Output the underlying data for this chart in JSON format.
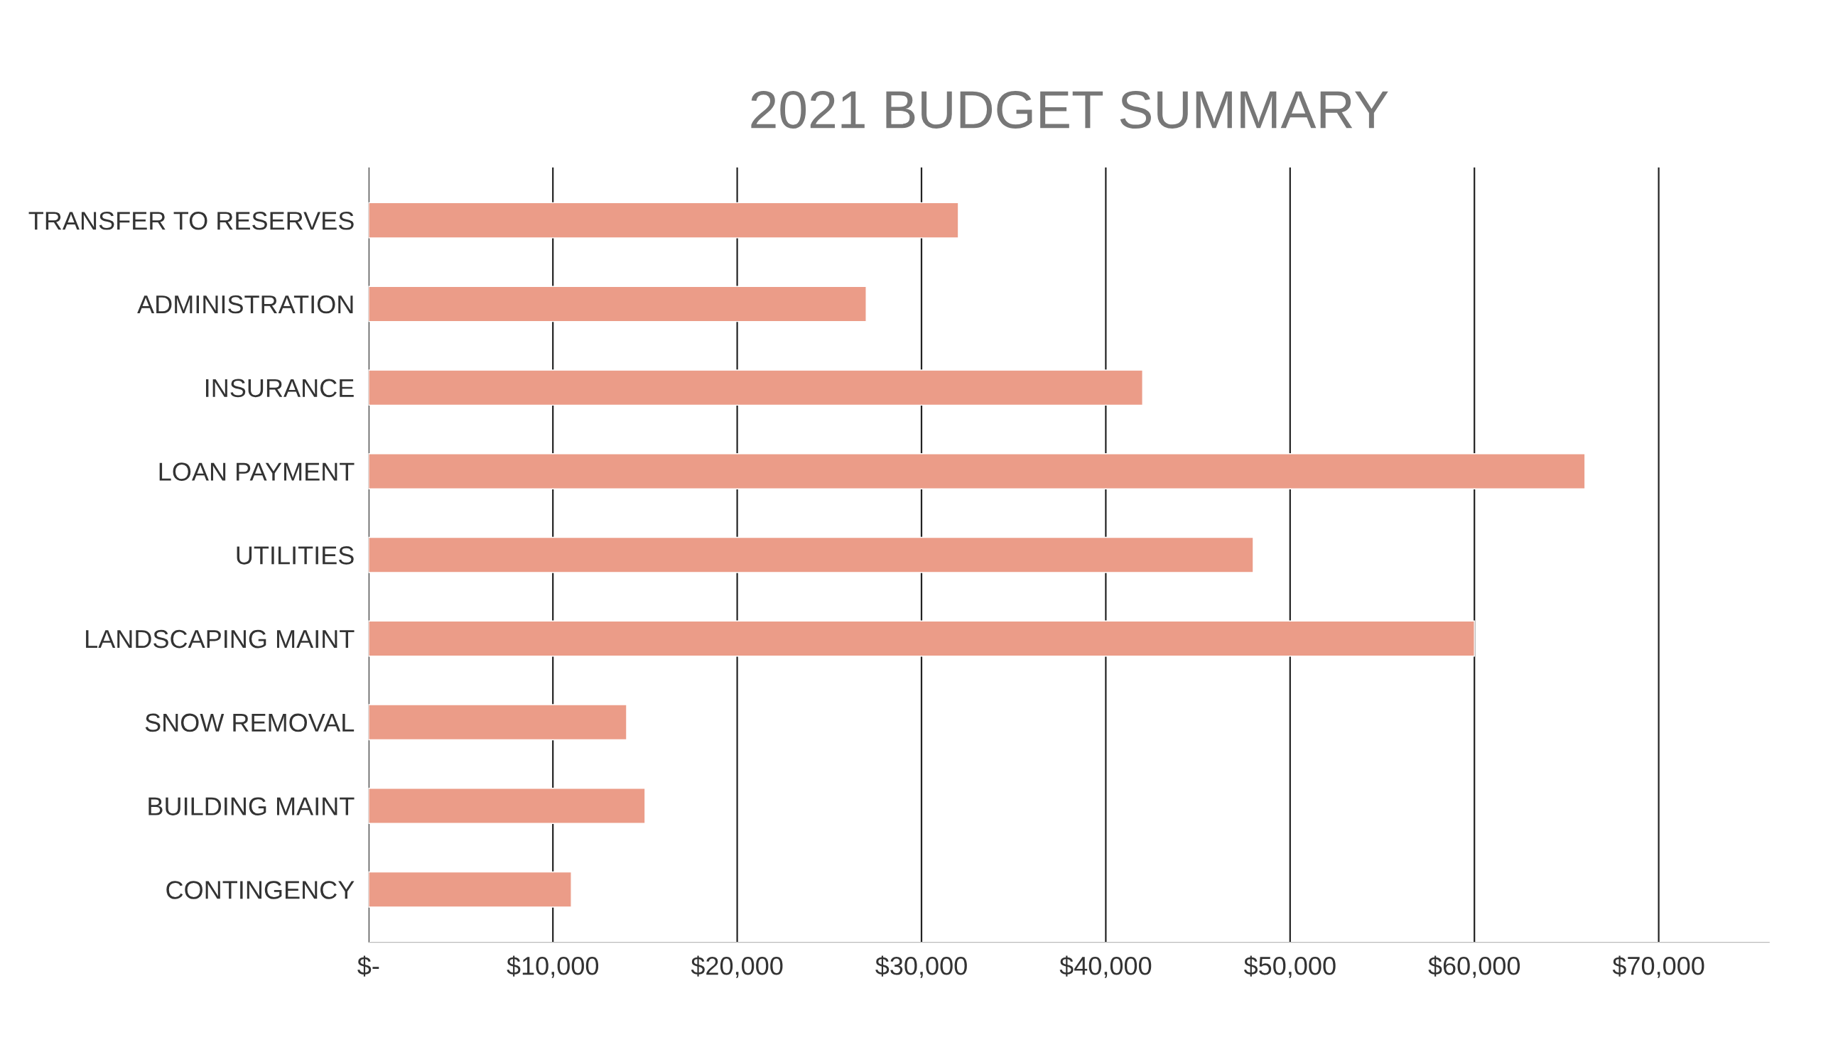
{
  "chart_data": {
    "type": "bar",
    "orientation": "horizontal",
    "title": "2021 BUDGET SUMMARY",
    "categories": [
      "TRANSFER TO RESERVES",
      "ADMINISTRATION",
      "INSURANCE",
      "LOAN PAYMENT",
      "UTILITIES",
      "LANDSCAPING MAINT",
      "SNOW REMOVAL",
      "BUILDING MAINT",
      "CONTINGENCY"
    ],
    "values": [
      32000,
      27000,
      42000,
      66000,
      48000,
      60000,
      14000,
      15000,
      11000
    ],
    "color": "#eb9c88",
    "xlim": [
      0,
      76000
    ],
    "xticks": [
      {
        "value": 0,
        "label": "$-"
      },
      {
        "value": 10000,
        "label": "$10,000"
      },
      {
        "value": 20000,
        "label": "$20,000"
      },
      {
        "value": 30000,
        "label": "$30,000"
      },
      {
        "value": 40000,
        "label": "$40,000"
      },
      {
        "value": 50000,
        "label": "$50,000"
      },
      {
        "value": 60000,
        "label": "$60,000"
      },
      {
        "value": 70000,
        "label": "$70,000"
      }
    ],
    "grid": "x"
  }
}
